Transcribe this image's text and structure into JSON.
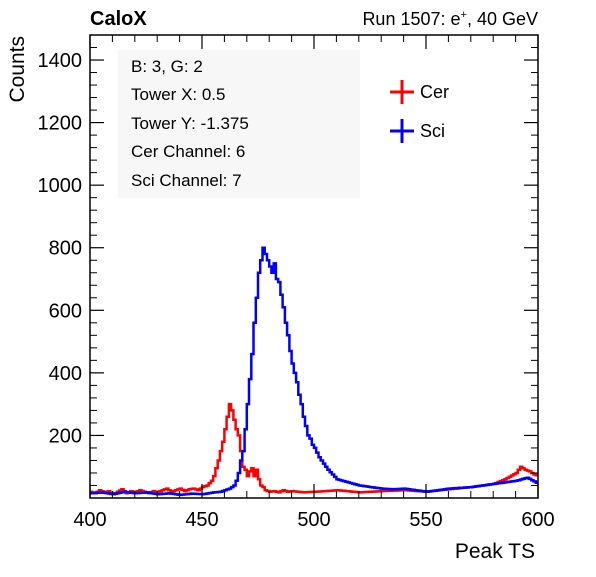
{
  "header": {
    "left_title": "CaloX",
    "right_title_prefix": "Run 1507: e",
    "right_title_sup": "+",
    "right_title_suffix": ", 40 GeV"
  },
  "info_box": {
    "lines": [
      "B: 3, G: 2",
      "Tower X: 0.5",
      "Tower Y: -1.375",
      "Cer Channel: 6",
      "Sci Channel: 7"
    ]
  },
  "colors": {
    "cer": "#ff0000",
    "sci": "#0000ff",
    "axis": "#000000",
    "info_box_bg": "#f7f7f7"
  },
  "chart_data": {
    "type": "line",
    "xlabel": "Peak TS",
    "ylabel": "Counts",
    "xlim": [
      400,
      600
    ],
    "ylim": [
      0,
      1480
    ],
    "x_ticks": [
      400,
      450,
      500,
      550,
      600
    ],
    "y_ticks": [
      200,
      400,
      600,
      800,
      1000,
      1200,
      1400
    ],
    "legend": {
      "position": "top-right",
      "entries": [
        "Cer",
        "Sci"
      ]
    },
    "grid": false,
    "bin_width": 1,
    "series": [
      {
        "name": "Cer",
        "color": "#ff0000",
        "x": [
          400,
          402,
          404,
          406,
          408,
          410,
          412,
          414,
          416,
          418,
          420,
          422,
          424,
          426,
          428,
          430,
          432,
          434,
          436,
          438,
          440,
          442,
          444,
          446,
          448,
          450,
          452,
          454,
          455,
          456,
          457,
          458,
          459,
          460,
          461,
          462,
          463,
          464,
          465,
          466,
          467,
          468,
          469,
          470,
          471,
          472,
          473,
          474,
          475,
          476,
          477,
          478,
          480,
          482,
          484,
          486,
          488,
          490,
          495,
          500,
          505,
          510,
          520,
          530,
          540,
          550,
          560,
          570,
          580,
          585,
          590,
          592,
          594,
          596,
          598,
          600
        ],
        "y": [
          20,
          15,
          25,
          18,
          22,
          12,
          20,
          28,
          15,
          22,
          18,
          25,
          20,
          15,
          22,
          18,
          25,
          30,
          20,
          25,
          30,
          22,
          28,
          30,
          25,
          35,
          40,
          55,
          70,
          95,
          120,
          150,
          180,
          220,
          260,
          300,
          280,
          250,
          220,
          200,
          150,
          100,
          90,
          70,
          85,
          95,
          70,
          90,
          60,
          40,
          35,
          25,
          20,
          22,
          18,
          25,
          20,
          22,
          18,
          20,
          22,
          25,
          18,
          22,
          25,
          20,
          28,
          35,
          45,
          60,
          80,
          100,
          90,
          85,
          75,
          70
        ]
      },
      {
        "name": "Sci",
        "color": "#0000ff",
        "x": [
          400,
          405,
          410,
          415,
          420,
          425,
          430,
          435,
          440,
          445,
          450,
          455,
          458,
          460,
          462,
          464,
          465,
          466,
          467,
          468,
          469,
          470,
          471,
          472,
          473,
          474,
          475,
          476,
          477,
          478,
          479,
          480,
          481,
          482,
          483,
          484,
          485,
          486,
          487,
          488,
          489,
          490,
          491,
          492,
          493,
          494,
          495,
          496,
          497,
          498,
          499,
          500,
          502,
          504,
          506,
          508,
          510,
          515,
          520,
          525,
          530,
          535,
          540,
          545,
          550,
          560,
          570,
          580,
          590,
          595,
          600
        ],
        "y": [
          15,
          18,
          12,
          20,
          15,
          18,
          12,
          15,
          10,
          14,
          12,
          18,
          20,
          25,
          30,
          40,
          55,
          80,
          120,
          150,
          220,
          300,
          380,
          460,
          560,
          640,
          720,
          760,
          800,
          780,
          760,
          740,
          720,
          750,
          700,
          690,
          650,
          610,
          560,
          520,
          470,
          430,
          400,
          370,
          330,
          300,
          260,
          230,
          200,
          190,
          170,
          160,
          130,
          110,
          90,
          75,
          60,
          50,
          40,
          35,
          30,
          28,
          30,
          25,
          20,
          30,
          35,
          45,
          55,
          65,
          45
        ]
      }
    ]
  }
}
